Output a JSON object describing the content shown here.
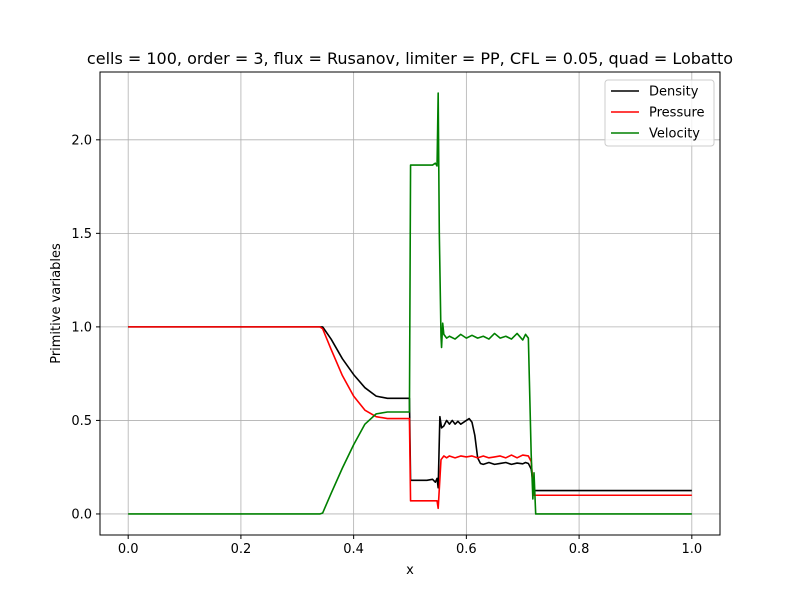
{
  "chart_data": {
    "type": "line",
    "title": "cells = 100, order = 3, flux = Rusanov, limiter = PP, CFL = 0.05, quad = Lobatto",
    "xlabel": "x",
    "ylabel": "Primitive variables",
    "xlim": [
      -0.05,
      1.05
    ],
    "ylim": [
      -0.1125,
      2.3625
    ],
    "xticks": [
      0.0,
      0.2,
      0.4,
      0.6,
      0.8,
      1.0
    ],
    "xtick_labels": [
      "0.0",
      "0.2",
      "0.4",
      "0.6",
      "0.8",
      "1.0"
    ],
    "yticks": [
      0.0,
      0.5,
      1.0,
      1.5,
      2.0
    ],
    "ytick_labels": [
      "0.0",
      "0.5",
      "1.0",
      "1.5",
      "2.0"
    ],
    "grid": true,
    "legend_position": "top-right",
    "series": [
      {
        "name": "Density",
        "color": "#000000",
        "points": [
          [
            0.0,
            1.0
          ],
          [
            0.34,
            1.0
          ],
          [
            0.345,
            1.0
          ],
          [
            0.36,
            0.935
          ],
          [
            0.38,
            0.83
          ],
          [
            0.4,
            0.745
          ],
          [
            0.42,
            0.675
          ],
          [
            0.44,
            0.63
          ],
          [
            0.46,
            0.618
          ],
          [
            0.49,
            0.618
          ],
          [
            0.499,
            0.618
          ],
          [
            0.501,
            0.18
          ],
          [
            0.53,
            0.18
          ],
          [
            0.54,
            0.185
          ],
          [
            0.545,
            0.17
          ],
          [
            0.548,
            0.19
          ],
          [
            0.55,
            0.14
          ],
          [
            0.553,
            0.52
          ],
          [
            0.556,
            0.46
          ],
          [
            0.56,
            0.47
          ],
          [
            0.565,
            0.5
          ],
          [
            0.57,
            0.48
          ],
          [
            0.575,
            0.5
          ],
          [
            0.58,
            0.48
          ],
          [
            0.585,
            0.495
          ],
          [
            0.59,
            0.48
          ],
          [
            0.595,
            0.49
          ],
          [
            0.6,
            0.5
          ],
          [
            0.605,
            0.51
          ],
          [
            0.61,
            0.49
          ],
          [
            0.615,
            0.42
          ],
          [
            0.62,
            0.3
          ],
          [
            0.625,
            0.27
          ],
          [
            0.63,
            0.265
          ],
          [
            0.64,
            0.275
          ],
          [
            0.65,
            0.265
          ],
          [
            0.66,
            0.27
          ],
          [
            0.67,
            0.275
          ],
          [
            0.68,
            0.265
          ],
          [
            0.69,
            0.272
          ],
          [
            0.7,
            0.268
          ],
          [
            0.705,
            0.275
          ],
          [
            0.71,
            0.27
          ],
          [
            0.715,
            0.24
          ],
          [
            0.72,
            0.125
          ],
          [
            0.8,
            0.125
          ],
          [
            1.0,
            0.125
          ]
        ]
      },
      {
        "name": "Pressure",
        "color": "#ff0000",
        "points": [
          [
            0.0,
            1.0
          ],
          [
            0.34,
            1.0
          ],
          [
            0.345,
            0.99
          ],
          [
            0.36,
            0.88
          ],
          [
            0.38,
            0.74
          ],
          [
            0.4,
            0.63
          ],
          [
            0.42,
            0.555
          ],
          [
            0.44,
            0.52
          ],
          [
            0.46,
            0.51
          ],
          [
            0.49,
            0.51
          ],
          [
            0.499,
            0.51
          ],
          [
            0.501,
            0.07
          ],
          [
            0.52,
            0.07
          ],
          [
            0.545,
            0.07
          ],
          [
            0.548,
            0.07
          ],
          [
            0.55,
            0.03
          ],
          [
            0.555,
            0.29
          ],
          [
            0.56,
            0.31
          ],
          [
            0.565,
            0.3
          ],
          [
            0.57,
            0.31
          ],
          [
            0.58,
            0.3
          ],
          [
            0.59,
            0.31
          ],
          [
            0.6,
            0.305
          ],
          [
            0.61,
            0.31
          ],
          [
            0.62,
            0.3
          ],
          [
            0.63,
            0.31
          ],
          [
            0.64,
            0.3
          ],
          [
            0.65,
            0.305
          ],
          [
            0.66,
            0.31
          ],
          [
            0.67,
            0.3
          ],
          [
            0.68,
            0.315
          ],
          [
            0.69,
            0.3
          ],
          [
            0.7,
            0.315
          ],
          [
            0.71,
            0.31
          ],
          [
            0.715,
            0.28
          ],
          [
            0.72,
            0.1
          ],
          [
            0.8,
            0.1
          ],
          [
            1.0,
            0.1
          ]
        ]
      },
      {
        "name": "Velocity",
        "color": "#008000",
        "points": [
          [
            0.0,
            0.0
          ],
          [
            0.34,
            0.0
          ],
          [
            0.345,
            0.005
          ],
          [
            0.36,
            0.11
          ],
          [
            0.38,
            0.245
          ],
          [
            0.4,
            0.37
          ],
          [
            0.42,
            0.48
          ],
          [
            0.44,
            0.535
          ],
          [
            0.46,
            0.545
          ],
          [
            0.49,
            0.545
          ],
          [
            0.499,
            0.545
          ],
          [
            0.501,
            1.865
          ],
          [
            0.52,
            1.865
          ],
          [
            0.54,
            1.865
          ],
          [
            0.545,
            1.875
          ],
          [
            0.548,
            1.86
          ],
          [
            0.55,
            2.25
          ],
          [
            0.552,
            1.5
          ],
          [
            0.555,
            0.95
          ],
          [
            0.556,
            0.89
          ],
          [
            0.558,
            1.02
          ],
          [
            0.56,
            0.96
          ],
          [
            0.565,
            0.94
          ],
          [
            0.57,
            0.95
          ],
          [
            0.58,
            0.935
          ],
          [
            0.59,
            0.96
          ],
          [
            0.6,
            0.94
          ],
          [
            0.61,
            0.955
          ],
          [
            0.62,
            0.94
          ],
          [
            0.63,
            0.95
          ],
          [
            0.64,
            0.935
          ],
          [
            0.65,
            0.965
          ],
          [
            0.66,
            0.94
          ],
          [
            0.67,
            0.95
          ],
          [
            0.68,
            0.935
          ],
          [
            0.69,
            0.965
          ],
          [
            0.7,
            0.93
          ],
          [
            0.705,
            0.96
          ],
          [
            0.71,
            0.94
          ],
          [
            0.715,
            0.32
          ],
          [
            0.718,
            0.08
          ],
          [
            0.72,
            0.22
          ],
          [
            0.723,
            0.0
          ],
          [
            0.8,
            0.0
          ],
          [
            1.0,
            0.0
          ]
        ]
      }
    ]
  }
}
